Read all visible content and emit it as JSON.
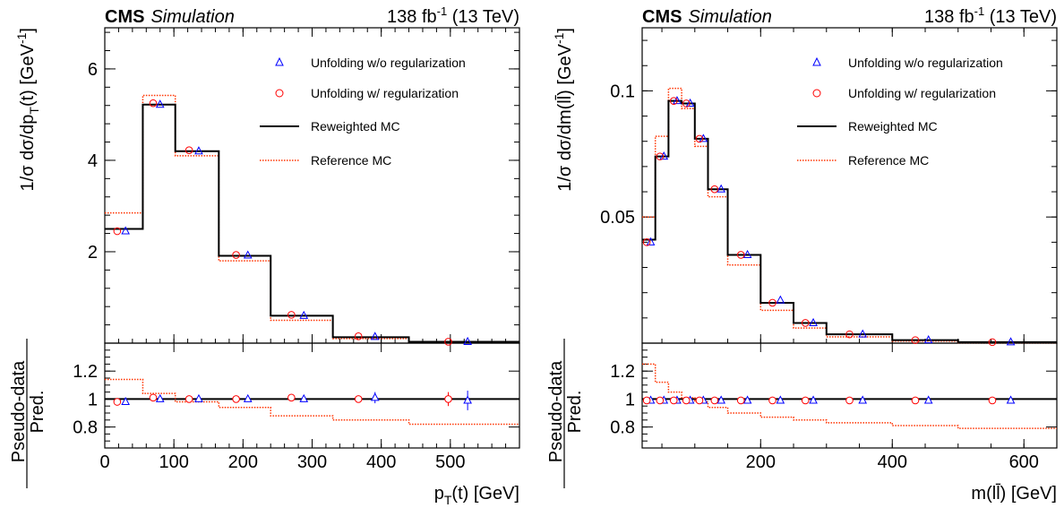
{
  "figure": {
    "colors": {
      "axes": "#000000",
      "unfold_noreg": "#0000ff",
      "unfold_reg": "#ff0000",
      "reweighted": "#000000",
      "reference": "#ff3300"
    }
  },
  "chart_data": [
    {
      "type": "histogram",
      "header": {
        "experiment": "CMS",
        "label": "Simulation",
        "lumi": "138 fb",
        "lumi_sup": "-1",
        "energy": " (13 TeV)"
      },
      "ylabel": "1/σ dσ/dp",
      "ylabel_sub": "T",
      "ylabel_tail": "(t)  [GeV",
      "ylabel_sup": "-1",
      "ylabel_end": "]",
      "xlabel": "p",
      "xlabel_sub": "T",
      "xlabel_tail": "(t) [GeV]",
      "ratio_label_top": "Pseudo-data",
      "ratio_label_bottom": "Pred.",
      "xlim": [
        0,
        600
      ],
      "ylim": [
        0,
        6.9
      ],
      "ratio_ylim": [
        0.65,
        1.4
      ],
      "xticks": [
        0,
        100,
        200,
        300,
        400,
        500
      ],
      "xtick_labels": [
        "0",
        "100",
        "200",
        "300",
        "400",
        "500"
      ],
      "yticks": [
        2,
        4,
        6
      ],
      "ytick_labels": [
        "2",
        "4",
        "6"
      ],
      "ratio_yticks": [
        0.8,
        1,
        1.2
      ],
      "ratio_ytick_labels": [
        "0.8",
        "1",
        "1.2"
      ],
      "legend_position": "top-right",
      "legend": [
        "Unfolding w/o regularization",
        "Unfolding w/ regularization",
        "Reweighted MC",
        "Reference MC"
      ],
      "bin_edges": [
        0,
        55,
        102,
        165,
        240,
        330,
        440,
        600
      ],
      "series": [
        {
          "name": "Unfolding w/o regularization",
          "kind": "points-triangle",
          "x": [
            30,
            80,
            136,
            207,
            288,
            391,
            525
          ],
          "values": [
            2.45,
            5.22,
            4.2,
            1.92,
            0.6,
            0.14,
            0.03
          ]
        },
        {
          "name": "Unfolding w/ regularization",
          "kind": "points-circle",
          "x": [
            18,
            70,
            122,
            190,
            270,
            367,
            497
          ],
          "values": [
            2.45,
            5.25,
            4.22,
            1.93,
            0.62,
            0.15,
            0.03
          ]
        },
        {
          "name": "Reweighted MC",
          "kind": "step-solid",
          "values": [
            2.5,
            5.22,
            4.2,
            1.91,
            0.6,
            0.13,
            0.03
          ]
        },
        {
          "name": "Reference MC",
          "kind": "step-dotted",
          "values": [
            2.85,
            5.42,
            4.1,
            1.8,
            0.5,
            0.1,
            0.03
          ]
        }
      ],
      "ratio": {
        "noreg": {
          "x": [
            30,
            80,
            136,
            207,
            288,
            391,
            525
          ],
          "values": [
            0.98,
            1.0,
            1.0,
            1.0,
            1.0,
            1.01,
            0.99
          ],
          "err": [
            0.02,
            0.02,
            0.02,
            0.02,
            0.02,
            0.04,
            0.07
          ]
        },
        "reg": {
          "x": [
            18,
            70,
            122,
            190,
            270,
            367,
            497
          ],
          "values": [
            0.98,
            1.01,
            1.0,
            1.0,
            1.01,
            1.0,
            1.0
          ],
          "err": [
            0.01,
            0.01,
            0.01,
            0.01,
            0.01,
            0.02,
            0.05
          ]
        },
        "reference": [
          1.14,
          1.04,
          0.98,
          0.94,
          0.88,
          0.85,
          0.82
        ]
      }
    },
    {
      "type": "histogram",
      "header": {
        "experiment": "CMS",
        "label": "Simulation",
        "lumi": "138 fb",
        "lumi_sup": "-1",
        "energy": " (13 TeV)"
      },
      "ylabel": "1/σ dσ/dm(",
      "ylabel_sub": "",
      "ylabel_tail": "ll̄)  [GeV",
      "ylabel_sup": "-1",
      "ylabel_end": "]",
      "xlabel": "m(",
      "xlabel_sub": "",
      "xlabel_tail": "ll̄) [GeV]",
      "ratio_label_top": "Pseudo-data",
      "ratio_label_bottom": "Pred.",
      "xlim": [
        20,
        650
      ],
      "ylim": [
        0,
        0.125
      ],
      "ratio_ylim": [
        0.65,
        1.4
      ],
      "xticks": [
        200,
        400,
        600
      ],
      "xtick_labels": [
        "200",
        "400",
        "600"
      ],
      "yticks": [
        0.05,
        0.1
      ],
      "ytick_labels": [
        "0.05",
        "0.1"
      ],
      "ratio_yticks": [
        0.8,
        1,
        1.2
      ],
      "ratio_ytick_labels": [
        "0.8",
        "1",
        "1.2"
      ],
      "legend_position": "top-right",
      "legend": [
        "Unfolding w/o regularization",
        "Unfolding w/ regularization",
        "Reweighted MC",
        "Reference MC"
      ],
      "bin_edges": [
        20,
        40,
        60,
        80,
        100,
        120,
        150,
        200,
        250,
        300,
        400,
        500,
        650
      ],
      "series": [
        {
          "name": "Unfolding w/o regularization",
          "kind": "points-triangle",
          "x": [
            33,
            53,
            73,
            93,
            113,
            140,
            180,
            230,
            280,
            355,
            455,
            580
          ],
          "values": [
            0.04,
            0.074,
            0.096,
            0.095,
            0.081,
            0.061,
            0.035,
            0.017,
            0.008,
            0.0035,
            0.0012,
            0.0004
          ]
        },
        {
          "name": "Unfolding w/ regularization",
          "kind": "points-circle",
          "x": [
            27,
            47,
            68,
            87,
            107,
            130,
            170,
            218,
            268,
            335,
            435,
            552
          ],
          "values": [
            0.04,
            0.074,
            0.096,
            0.095,
            0.081,
            0.061,
            0.035,
            0.016,
            0.008,
            0.0035,
            0.0012,
            0.0004
          ]
        },
        {
          "name": "Reweighted MC",
          "kind": "step-solid",
          "values": [
            0.041,
            0.074,
            0.096,
            0.095,
            0.081,
            0.061,
            0.035,
            0.016,
            0.008,
            0.0035,
            0.0012,
            0.0004
          ]
        },
        {
          "name": "Reference MC",
          "kind": "step-dotted",
          "values": [
            0.05,
            0.082,
            0.101,
            0.093,
            0.078,
            0.058,
            0.031,
            0.013,
            0.006,
            0.0025,
            0.0008,
            0.0002
          ]
        }
      ],
      "ratio": {
        "noreg": {
          "x": [
            33,
            53,
            73,
            93,
            113,
            140,
            180,
            230,
            280,
            355,
            455,
            580
          ],
          "values": [
            0.99,
            0.99,
            0.99,
            0.99,
            0.99,
            0.99,
            0.99,
            0.99,
            0.99,
            0.99,
            0.99,
            0.99
          ],
          "err": [
            0.01,
            0.01,
            0.01,
            0.01,
            0.01,
            0.01,
            0.01,
            0.01,
            0.01,
            0.01,
            0.01,
            0.01
          ]
        },
        "reg": {
          "x": [
            27,
            47,
            68,
            87,
            107,
            130,
            170,
            218,
            268,
            335,
            435,
            552
          ],
          "values": [
            0.99,
            0.99,
            0.99,
            0.99,
            0.99,
            0.99,
            0.99,
            0.99,
            0.99,
            0.99,
            0.99,
            0.99
          ],
          "err": [
            0.01,
            0.01,
            0.01,
            0.01,
            0.01,
            0.01,
            0.01,
            0.01,
            0.01,
            0.01,
            0.01,
            0.01
          ]
        },
        "reference": [
          1.25,
          1.12,
          1.05,
          1.01,
          0.98,
          0.94,
          0.9,
          0.87,
          0.85,
          0.83,
          0.81,
          0.79
        ]
      }
    }
  ]
}
